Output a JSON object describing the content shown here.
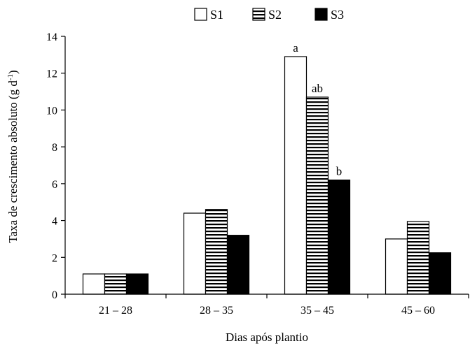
{
  "chart_data": {
    "type": "bar",
    "title": "",
    "xlabel": "Dias após plantio",
    "ylabel": "Taxa de crescimento absoluto (g d",
    "ylabel_sup": "-1",
    "ylabel_close": ")",
    "categories": [
      "21 – 28",
      "28 – 35",
      "35 – 45",
      "45 – 60"
    ],
    "ylim": [
      0,
      14
    ],
    "yticks": [
      0,
      2,
      4,
      6,
      8,
      10,
      12,
      14
    ],
    "grid": false,
    "legend_position": "top",
    "series": [
      {
        "name": "S1",
        "fill": "white",
        "color": "#ffffff",
        "values": [
          1.1,
          4.4,
          12.9,
          3.0
        ]
      },
      {
        "name": "S2",
        "fill": "horizontal-stripes",
        "color": "#000000",
        "values": [
          1.1,
          4.6,
          10.7,
          3.95
        ]
      },
      {
        "name": "S3",
        "fill": "solid",
        "color": "#000000",
        "values": [
          1.1,
          3.2,
          6.2,
          2.25
        ]
      }
    ],
    "annotations": [
      {
        "category": "35 – 45",
        "series": "S1",
        "text": "a"
      },
      {
        "category": "35 – 45",
        "series": "S2",
        "text": "ab"
      },
      {
        "category": "35 – 45",
        "series": "S3",
        "text": "b"
      }
    ]
  }
}
